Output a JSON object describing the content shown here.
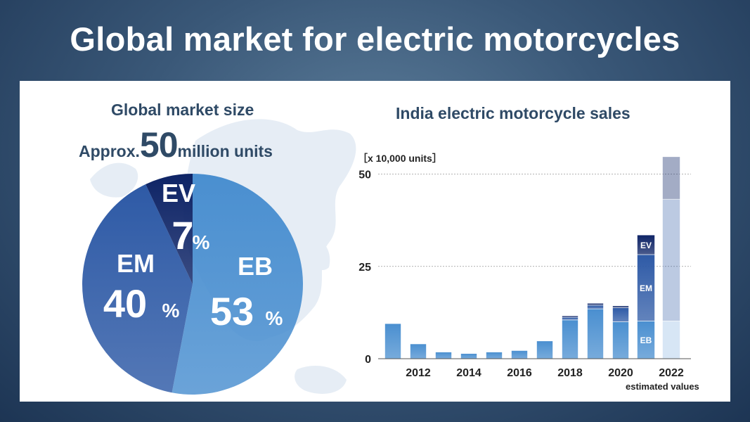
{
  "title": "Global market for electric motorcycles",
  "colors": {
    "background": "#2c4a6a",
    "text": "#2f4a66",
    "eb": "#4a8fd0",
    "em": "#2e5aa6",
    "ev": "#0e2466"
  },
  "pie": {
    "title": "Global market size",
    "approx_prefix": "Approx.",
    "approx_value": "50",
    "approx_suffix": "million units"
  },
  "bar": {
    "title": "India electric motorcycle sales",
    "unit_label": "［x 10,000 units］",
    "estimated_label": "estimated values"
  },
  "chart_data": [
    {
      "type": "pie",
      "title": "Global market size",
      "slices": [
        {
          "label": "EB",
          "value": 53,
          "display": "53",
          "color": "#4a8fd0"
        },
        {
          "label": "EM",
          "value": 40,
          "display": "40",
          "color": "#2e5aa6"
        },
        {
          "label": "EV",
          "value": 7,
          "display": "7",
          "color": "#0e2466"
        }
      ],
      "percent_sign": "%"
    },
    {
      "type": "bar",
      "title": "India electric motorcycle sales",
      "ylabel": "x 10,000 units",
      "ylim": [
        0,
        60
      ],
      "yticks": [
        0,
        25,
        50
      ],
      "grid": true,
      "xtick_labels": [
        "2012",
        "2014",
        "2016",
        "2018",
        "2020",
        "2022"
      ],
      "categories": [
        "2011",
        "2012",
        "2013",
        "2014",
        "2015",
        "2016",
        "2017",
        "2018",
        "2019",
        "2020",
        "2021",
        "2022"
      ],
      "stack_labels": [
        "EB",
        "EM",
        "EV"
      ],
      "series": [
        {
          "name": "EB",
          "values": [
            9.5,
            4.0,
            1.8,
            1.4,
            1.8,
            2.2,
            4.8,
            10.5,
            13.5,
            10.0,
            10.2,
            10.2
          ],
          "color": "#4a8fd0"
        },
        {
          "name": "EM",
          "values": [
            0,
            0,
            0,
            0,
            0,
            0,
            0,
            0.7,
            1.0,
            3.8,
            18.0,
            33.0
          ],
          "color": "#2e5aa6"
        },
        {
          "name": "EV",
          "values": [
            0,
            0,
            0,
            0,
            0,
            0,
            0,
            0.4,
            0.5,
            0.5,
            5.3,
            11.5
          ],
          "color": "#0e2466"
        }
      ],
      "estimated": [
        "2022"
      ]
    }
  ]
}
